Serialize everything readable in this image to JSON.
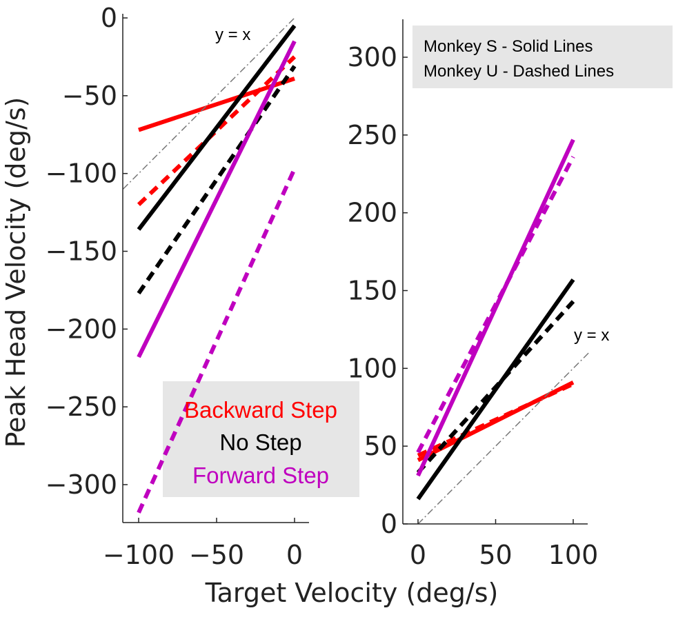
{
  "figure": {
    "shared_xlabel": "Target Velocity (deg/s)",
    "shared_ylabel": "Peak Head Velocity (deg/s)"
  },
  "colors": {
    "backward": "#ff0000",
    "nostep": "#000000",
    "forward": "#bf00bf",
    "identity": "#777777",
    "legend_bg": "#e6e6e6"
  },
  "legend_left": {
    "entries": [
      {
        "label": "Backward Step",
        "color": "#ff0000"
      },
      {
        "label": "No Step",
        "color": "#000000"
      },
      {
        "label": "Forward Step",
        "color": "#bf00bf"
      }
    ]
  },
  "legend_right": {
    "lines": [
      "Monkey S - Solid Lines",
      "Monkey U - Dashed Lines"
    ]
  },
  "chart_data": [
    {
      "type": "line",
      "xlim": [
        -110,
        10
      ],
      "ylim": [
        -325,
        0
      ],
      "xticks": [
        -100,
        -50,
        0
      ],
      "xtick_labels": [
        "−100",
        "−50",
        "0"
      ],
      "yticks": [
        0,
        -50,
        -100,
        -150,
        -200,
        -250,
        -300
      ],
      "ytick_labels": [
        "0",
        "−50",
        "−100",
        "−150",
        "−200",
        "−250",
        "−300"
      ],
      "annotation": "y = x",
      "series": [
        {
          "group": "backward",
          "style": "solid",
          "x": [
            -100,
            0
          ],
          "y": [
            -72,
            -39
          ]
        },
        {
          "group": "backward",
          "style": "dashed",
          "x": [
            -100,
            0
          ],
          "y": [
            -120,
            -25
          ]
        },
        {
          "group": "nostep",
          "style": "solid",
          "x": [
            -100,
            0
          ],
          "y": [
            -136,
            -5
          ]
        },
        {
          "group": "nostep",
          "style": "dashed",
          "x": [
            -100,
            0
          ],
          "y": [
            -177,
            -31
          ]
        },
        {
          "group": "forward",
          "style": "solid",
          "x": [
            -100,
            0
          ],
          "y": [
            -218,
            -15
          ]
        },
        {
          "group": "forward",
          "style": "dashed",
          "x": [
            -100,
            0
          ],
          "y": [
            -318,
            -97
          ]
        },
        {
          "group": "identity",
          "style": "dashdot",
          "x": [
            -110,
            0
          ],
          "y": [
            -110,
            0
          ]
        }
      ]
    },
    {
      "type": "line",
      "xlim": [
        -5,
        110
      ],
      "ylim": [
        0,
        325
      ],
      "xticks": [
        0,
        50,
        100
      ],
      "xtick_labels": [
        "0",
        "50",
        "100"
      ],
      "yticks": [
        0,
        50,
        100,
        150,
        200,
        250,
        300
      ],
      "ytick_labels": [
        "0",
        "50",
        "100",
        "150",
        "200",
        "250",
        "300"
      ],
      "annotation": "y = x",
      "series": [
        {
          "group": "backward",
          "style": "solid",
          "x": [
            0,
            100
          ],
          "y": [
            41,
            91
          ]
        },
        {
          "group": "backward",
          "style": "dashed",
          "x": [
            0,
            100
          ],
          "y": [
            44,
            90
          ]
        },
        {
          "group": "nostep",
          "style": "solid",
          "x": [
            0,
            100
          ],
          "y": [
            16,
            157
          ]
        },
        {
          "group": "nostep",
          "style": "dashed",
          "x": [
            0,
            100
          ],
          "y": [
            33,
            143
          ]
        },
        {
          "group": "forward",
          "style": "solid",
          "x": [
            0,
            100
          ],
          "y": [
            31,
            247
          ]
        },
        {
          "group": "forward",
          "style": "dashed",
          "x": [
            0,
            100
          ],
          "y": [
            46,
            236
          ]
        },
        {
          "group": "identity",
          "style": "dashdot",
          "x": [
            0,
            110
          ],
          "y": [
            0,
            110
          ]
        }
      ]
    }
  ]
}
